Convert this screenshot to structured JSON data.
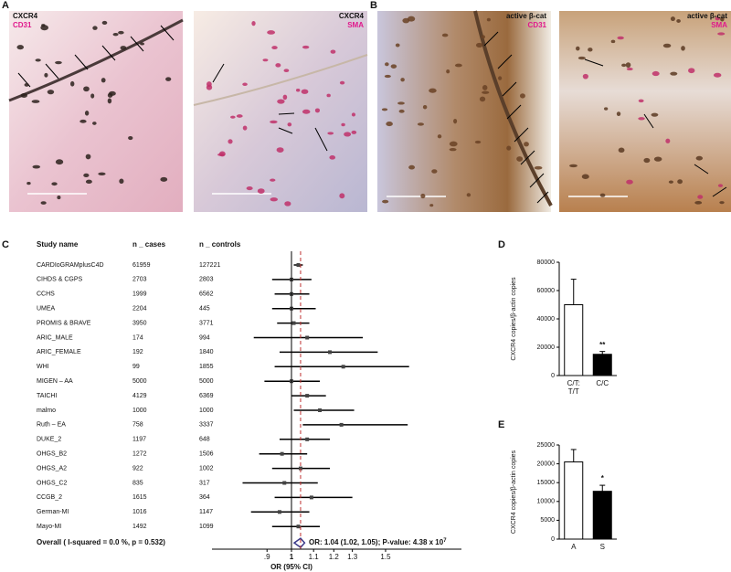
{
  "panel_labels": [
    "A",
    "B",
    "C",
    "D",
    "E"
  ],
  "images": [
    {
      "marker": "CXCR4",
      "stain": "CD31"
    },
    {
      "marker": "CXCR4",
      "stain": "SMA"
    },
    {
      "marker": "active β-cat",
      "stain": "CD31"
    },
    {
      "marker": "active β-cat",
      "stain": "SMA"
    }
  ],
  "chart_data": [
    {
      "type": "forest",
      "column_headers": [
        "Study name",
        "n _ cases",
        "n _ controls"
      ],
      "studies": [
        {
          "name": "CARDIoGRAMplusC4D",
          "n_cases": 61959,
          "n_controls": 127221,
          "or": 1.03,
          "lo": 1.01,
          "hi": 1.05
        },
        {
          "name": "CIHDS & CGPS",
          "n_cases": 2703,
          "n_controls": 2803,
          "or": 1.0,
          "lo": 0.92,
          "hi": 1.09
        },
        {
          "name": "CCHS",
          "n_cases": 1999,
          "n_controls": 6562,
          "or": 1.0,
          "lo": 0.93,
          "hi": 1.08
        },
        {
          "name": "UMEA",
          "n_cases": 2204,
          "n_controls": 445,
          "or": 1.0,
          "lo": 0.92,
          "hi": 1.11
        },
        {
          "name": "PROMIS & BRAVE",
          "n_cases": 3950,
          "n_controls": 3771,
          "or": 1.01,
          "lo": 0.94,
          "hi": 1.08
        },
        {
          "name": "ARIC_MALE",
          "n_cases": 174,
          "n_controls": 994,
          "or": 1.07,
          "lo": 0.85,
          "hi": 1.36
        },
        {
          "name": "ARIC_FEMALE",
          "n_cases": 192,
          "n_controls": 1840,
          "or": 1.18,
          "lo": 0.95,
          "hi": 1.45
        },
        {
          "name": "WHI",
          "n_cases": 99,
          "n_controls": 1855,
          "or": 1.25,
          "lo": 0.93,
          "hi": 1.66
        },
        {
          "name": "MIGEN – AA",
          "n_cases": 5000,
          "n_controls": 5000,
          "or": 1.0,
          "lo": 0.89,
          "hi": 1.13
        },
        {
          "name": "TAICHI",
          "n_cases": 4129,
          "n_controls": 6369,
          "or": 1.07,
          "lo": 1.0,
          "hi": 1.16
        },
        {
          "name": "malmo",
          "n_cases": 1000,
          "n_controls": 1000,
          "or": 1.13,
          "lo": 1.01,
          "hi": 1.31
        },
        {
          "name": "Ruth – EA",
          "n_cases": 758,
          "n_controls": 3337,
          "or": 1.24,
          "lo": 1.05,
          "hi": 1.65
        },
        {
          "name": "DUKE_2",
          "n_cases": 1197,
          "n_controls": 648,
          "or": 1.07,
          "lo": 0.95,
          "hi": 1.18
        },
        {
          "name": "OHGS_B2",
          "n_cases": 1272,
          "n_controls": 1506,
          "or": 0.96,
          "lo": 0.87,
          "hi": 1.07
        },
        {
          "name": "OHGS_A2",
          "n_cases": 922,
          "n_controls": 1002,
          "or": 1.04,
          "lo": 0.92,
          "hi": 1.18
        },
        {
          "name": "OHGS_C2",
          "n_cases": 835,
          "n_controls": 317,
          "or": 0.97,
          "lo": 0.81,
          "hi": 1.12
        },
        {
          "name": "CCGB_2",
          "n_cases": 1615,
          "n_controls": 364,
          "or": 1.09,
          "lo": 0.93,
          "hi": 1.3
        },
        {
          "name": "German-MI",
          "n_cases": 1016,
          "n_controls": 1147,
          "or": 0.95,
          "lo": 0.84,
          "hi": 1.08
        },
        {
          "name": "Mayo-MI",
          "n_cases": 1492,
          "n_controls": 1099,
          "or": 1.03,
          "lo": 0.92,
          "hi": 1.13
        }
      ],
      "overall": {
        "label": "Overall ( I-squared = 0.0 %, p = 0.532)",
        "or": 1.04,
        "lo": 1.02,
        "hi": 1.05
      },
      "annotation": "OR: 1.04 (1.02, 1.05); P-value: 4.38 x 10",
      "annotation_exponent": "7",
      "xlabel": "OR (95% CI)",
      "log_scale": true,
      "reference": 1,
      "xlim": [
        0.71,
        2.08
      ],
      "xticks": [
        {
          "value": 0.9,
          "label": ".9"
        },
        1,
        1.1,
        1.2,
        1.3,
        1.5
      ]
    },
    {
      "type": "bar",
      "ylabel": "CXCR4 copies/β-actin  copies",
      "categories": [
        "C/T:\nT/T",
        "C/C"
      ],
      "values": [
        50000,
        15000
      ],
      "errors": [
        18000,
        2000
      ],
      "colors": [
        "#ffffff",
        "#000000"
      ],
      "significance": [
        null,
        "**"
      ],
      "ylim": [
        0,
        80000
      ],
      "yticks": [
        0,
        20000,
        40000,
        60000,
        80000
      ]
    },
    {
      "type": "bar",
      "ylabel": "CXCR4 copies/β-actin  copies",
      "categories": [
        "A",
        "S"
      ],
      "values": [
        20500,
        12700
      ],
      "errors": [
        3300,
        1600
      ],
      "colors": [
        "#ffffff",
        "#000000"
      ],
      "significance": [
        null,
        "*"
      ],
      "ylim": [
        0,
        25000
      ],
      "yticks": [
        0,
        5000,
        10000,
        15000,
        20000,
        25000
      ]
    }
  ]
}
